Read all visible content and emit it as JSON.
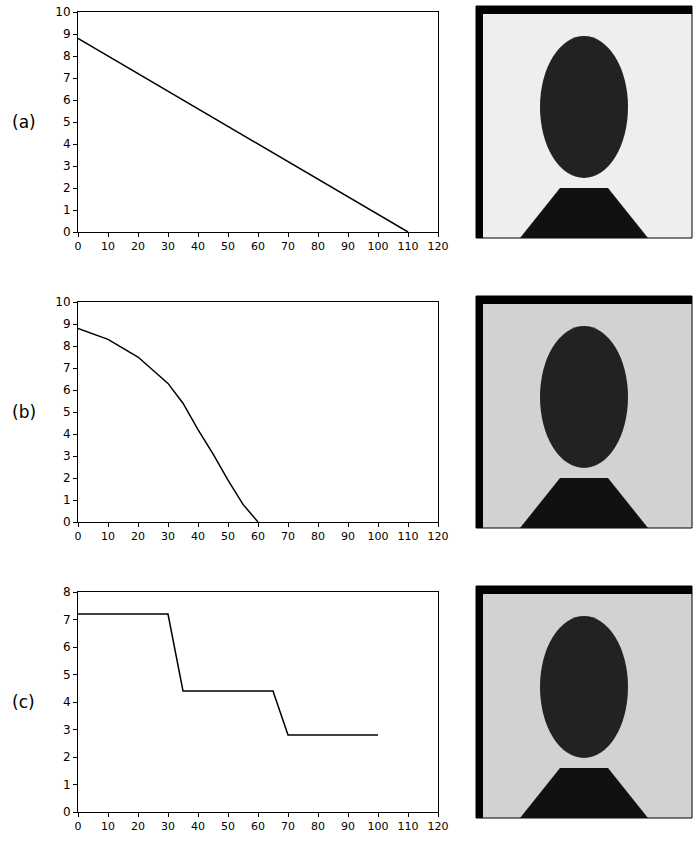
{
  "chart_data": [
    {
      "type": "line",
      "label": "(a)",
      "x": [
        0,
        110
      ],
      "values": [
        8.8,
        0
      ],
      "color": "#000000",
      "xlim": [
        0,
        120
      ],
      "xticks": [
        0,
        10,
        20,
        30,
        40,
        50,
        60,
        70,
        80,
        90,
        100,
        110,
        120
      ],
      "ylim": [
        0,
        10
      ],
      "yticks": [
        0,
        1,
        2,
        3,
        4,
        5,
        6,
        7,
        8,
        9,
        10
      ],
      "grid": false
    },
    {
      "type": "line",
      "label": "(b)",
      "x": [
        0,
        10,
        20,
        30,
        35,
        40,
        45,
        50,
        55,
        60
      ],
      "values": [
        8.8,
        8.3,
        7.5,
        6.3,
        5.4,
        4.2,
        3.1,
        1.9,
        0.8,
        0
      ],
      "color": "#000000",
      "xlim": [
        0,
        120
      ],
      "xticks": [
        0,
        10,
        20,
        30,
        40,
        50,
        60,
        70,
        80,
        90,
        100,
        110,
        120
      ],
      "ylim": [
        0,
        10
      ],
      "yticks": [
        0,
        1,
        2,
        3,
        4,
        5,
        6,
        7,
        8,
        9,
        10
      ],
      "grid": false
    },
    {
      "type": "line",
      "label": "(c)",
      "x": [
        0,
        30,
        35,
        65,
        70,
        100
      ],
      "values": [
        7.2,
        7.2,
        4.4,
        4.4,
        2.8,
        2.8
      ],
      "color": "#000000",
      "xlim": [
        0,
        120
      ],
      "xticks": [
        0,
        10,
        20,
        30,
        40,
        50,
        60,
        70,
        80,
        90,
        100,
        110,
        120
      ],
      "ylim": [
        0,
        8
      ],
      "yticks": [
        0,
        1,
        2,
        3,
        4,
        5,
        6,
        7,
        8
      ],
      "grid": false
    }
  ]
}
